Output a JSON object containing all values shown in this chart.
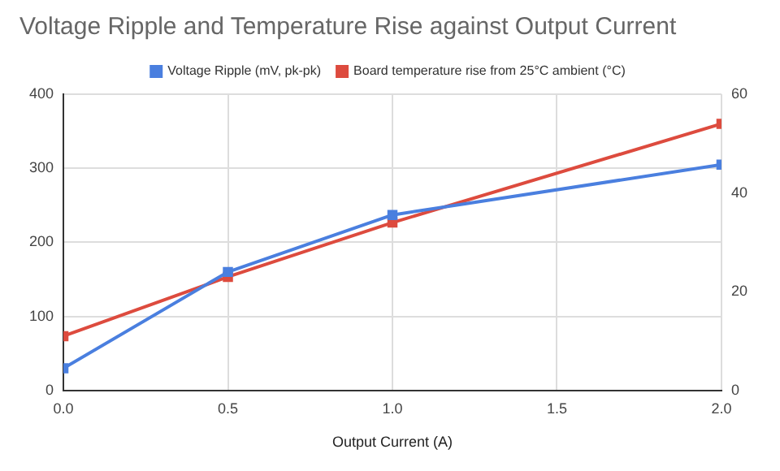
{
  "chart_data": {
    "type": "line",
    "title": "Voltage Ripple and Temperature Rise against Output Current",
    "xlabel": "Output Current (A)",
    "x": [
      0,
      0.5,
      1,
      2
    ],
    "series": [
      {
        "name": "Voltage Ripple (mV, pk-pk)",
        "color": "#4a7fdf",
        "values": [
          30,
          160,
          237,
          305
        ]
      },
      {
        "name": "Board temperature rise from 25°C ambient (°C)",
        "color": "#dd4b3e",
        "values": [
          11,
          23,
          34,
          54
        ],
        "axis": "y2"
      }
    ],
    "xlim": [
      0,
      2
    ],
    "xticks": [
      {
        "value": 0,
        "label": "0.0"
      },
      {
        "value": 0.5,
        "label": "0.5"
      },
      {
        "value": 1,
        "label": "1.0"
      },
      {
        "value": 1.5,
        "label": "1.5"
      },
      {
        "value": 2,
        "label": "2.0"
      }
    ],
    "ylim": [
      0,
      400
    ],
    "yticks": [
      0,
      100,
      200,
      300,
      400
    ],
    "y2lim": [
      0,
      60
    ],
    "y2ticks": [
      0,
      20,
      40,
      60
    ],
    "grid": true,
    "legend": "top",
    "marker": "square",
    "line_style": "solid"
  }
}
